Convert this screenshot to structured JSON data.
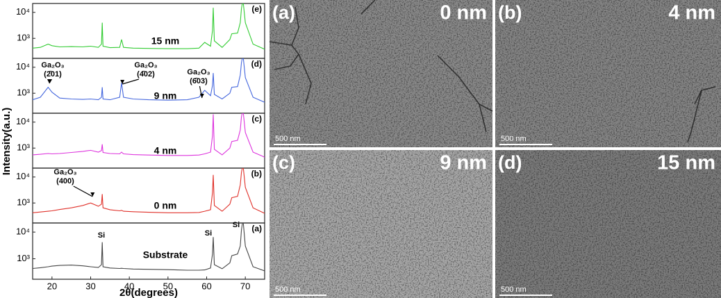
{
  "chart_data": [
    {
      "type": "line",
      "panel": "(e)",
      "label": "15 nm",
      "color": "#33cc33",
      "log_y": true,
      "x": [
        15,
        17,
        19,
        20,
        22,
        25,
        28,
        30,
        32,
        32.8,
        33,
        33.2,
        35,
        37.5,
        38,
        38.5,
        41,
        45,
        50,
        55,
        58,
        59.5,
        61,
        61.5,
        61.7,
        62,
        64,
        66,
        66.5,
        68,
        68.7,
        69,
        69.4,
        70,
        72,
        75
      ],
      "values": [
        420,
        450,
        600,
        520,
        470,
        480,
        470,
        500,
        450,
        600,
        4000,
        500,
        440,
        450,
        900,
        450,
        420,
        410,
        400,
        400,
        420,
        700,
        500,
        2000,
        15000,
        800,
        450,
        900,
        1500,
        1600,
        4000,
        14000,
        30000,
        4000,
        600,
        380
      ],
      "ylim": [
        170,
        22000
      ],
      "yticks": [
        {
          "value": 1000,
          "label": "10³"
        },
        {
          "value": 10000,
          "label": "10⁴"
        }
      ]
    },
    {
      "type": "line",
      "panel": "(d)",
      "label": "9 nm",
      "color": "#4466dd",
      "log_y": true,
      "x": [
        15,
        17,
        19,
        20,
        22,
        25,
        28,
        30,
        32,
        32.8,
        33,
        33.2,
        35,
        37.5,
        38,
        38.5,
        41,
        45,
        50,
        55,
        58,
        59.5,
        61,
        61.5,
        61.7,
        62,
        64,
        66,
        66.5,
        68,
        68.7,
        69,
        69.4,
        70,
        72,
        75
      ],
      "values": [
        560,
        700,
        1700,
        1100,
        650,
        600,
        580,
        600,
        560,
        700,
        1700,
        600,
        560,
        700,
        2500,
        700,
        600,
        560,
        540,
        560,
        700,
        1300,
        800,
        2000,
        6000,
        900,
        600,
        1000,
        1700,
        1800,
        5000,
        15000,
        30000,
        4000,
        700,
        450
      ],
      "ylim": [
        170,
        22000
      ],
      "yticks": [
        {
          "value": 1000,
          "label": "10³"
        },
        {
          "value": 10000,
          "label": "10⁴"
        }
      ],
      "annotations": [
        [
          "Ga₂O₃",
          "(2̄01)"
        ],
        [
          "Ga₂O₃",
          "(4̄02)"
        ],
        [
          "Ga₂O₃",
          "(6̄03)"
        ]
      ]
    },
    {
      "type": "line",
      "panel": "(c)",
      "label": "4 nm",
      "color": "#dd33dd",
      "log_y": true,
      "x": [
        15,
        17,
        19,
        20,
        22,
        25,
        28,
        30,
        32,
        32.8,
        33,
        33.2,
        35,
        37.5,
        38,
        38.5,
        41,
        45,
        50,
        55,
        58,
        59.5,
        61,
        61.5,
        61.7,
        62,
        64,
        66,
        66.5,
        68,
        68.7,
        69,
        69.4,
        70,
        72,
        75
      ],
      "values": [
        550,
        580,
        620,
        600,
        620,
        680,
        750,
        820,
        700,
        800,
        1400,
        680,
        620,
        600,
        700,
        600,
        560,
        540,
        520,
        520,
        540,
        600,
        700,
        3000,
        20000,
        900,
        550,
        1000,
        1800,
        2000,
        5000,
        16000,
        30000,
        4000,
        700,
        450
      ],
      "ylim": [
        170,
        22000
      ],
      "yticks": [
        {
          "value": 1000,
          "label": "10³"
        },
        {
          "value": 10000,
          "label": "10⁴"
        }
      ],
      "ylabel": "Intensity(a.u.)"
    },
    {
      "type": "line",
      "panel": "(b)",
      "label": "0 nm",
      "color": "#e0312a",
      "log_y": true,
      "x": [
        15,
        17,
        19,
        20,
        22,
        25,
        28,
        30,
        32,
        32.8,
        33,
        33.2,
        35,
        37.5,
        38,
        38.5,
        41,
        45,
        50,
        55,
        58,
        59.5,
        61,
        61.5,
        61.7,
        62,
        64,
        66,
        66.5,
        68,
        68.7,
        69,
        69.4,
        70,
        72,
        75
      ],
      "values": [
        420,
        450,
        480,
        500,
        560,
        650,
        800,
        1000,
        750,
        900,
        2200,
        650,
        550,
        500,
        520,
        480,
        460,
        440,
        420,
        420,
        430,
        480,
        550,
        2500,
        12000,
        800,
        480,
        900,
        1600,
        1800,
        5000,
        15000,
        30000,
        4000,
        650,
        400
      ],
      "ylim": [
        170,
        22000
      ],
      "yticks": [
        {
          "value": 1000,
          "label": "10³"
        },
        {
          "value": 10000,
          "label": "10⁴"
        }
      ],
      "annotations": [
        [
          "Ga₂O₃",
          "(400)"
        ]
      ]
    },
    {
      "type": "line",
      "panel": "(a)",
      "label": "Substrate",
      "color": "#444444",
      "log_y": true,
      "x": [
        15,
        17,
        19,
        20,
        22,
        25,
        28,
        30,
        32,
        32.8,
        33,
        33.2,
        35,
        37.5,
        38,
        38.5,
        41,
        45,
        50,
        55,
        58,
        59.5,
        61,
        61.5,
        61.7,
        62,
        64,
        66,
        66.5,
        68,
        68.7,
        69,
        69.4,
        70,
        72,
        75
      ],
      "values": [
        430,
        460,
        500,
        530,
        560,
        580,
        540,
        500,
        470,
        600,
        4200,
        500,
        450,
        430,
        440,
        430,
        410,
        400,
        390,
        370,
        370,
        380,
        450,
        1500,
        6500,
        600,
        420,
        700,
        1300,
        1500,
        3000,
        12000,
        30000,
        3000,
        500,
        350
      ],
      "ylim": [
        170,
        22000
      ],
      "yticks": [
        {
          "value": 1000,
          "label": "10³"
        },
        {
          "value": 10000,
          "label": "10⁴"
        }
      ],
      "annotations": [
        [
          "Si"
        ],
        [
          "Si"
        ],
        [
          "Si"
        ]
      ],
      "xlim": [
        15,
        75
      ],
      "xticks": [
        20,
        30,
        40,
        50,
        60,
        70
      ],
      "xlabel": "2θ(degrees)"
    }
  ],
  "sem_images": [
    {
      "panel": "(a)",
      "thickness": "0 nm",
      "scale_bar": "500 nm"
    },
    {
      "panel": "(b)",
      "thickness": "4 nm",
      "scale_bar": "500 nm"
    },
    {
      "panel": "(c)",
      "thickness": "9 nm",
      "scale_bar": "500 nm"
    },
    {
      "panel": "(d)",
      "thickness": "15 nm",
      "scale_bar": "500 nm"
    }
  ]
}
